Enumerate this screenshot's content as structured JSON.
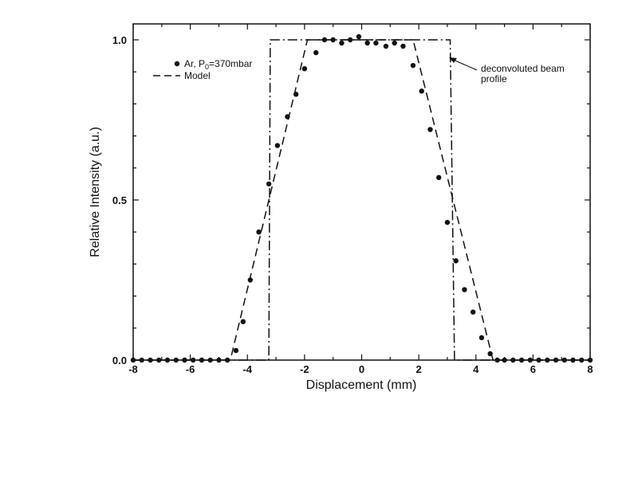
{
  "chart_data": {
    "type": "scatter",
    "xlabel": "Displacement (mm)",
    "ylabel": "Relative Intensity (a.u.)",
    "xlim": [
      -8,
      8
    ],
    "ylim": [
      0,
      1.0
    ],
    "xticks": [
      -8,
      -6,
      -4,
      -2,
      0,
      2,
      4,
      6,
      8
    ],
    "xtick_labels": [
      "-8",
      "-6",
      "-4",
      "-2",
      "0",
      "2",
      "4",
      "6",
      "8"
    ],
    "yticks": [
      0,
      0.5,
      1.0
    ],
    "ytick_labels": [
      "0.0",
      "0.5",
      "1.0"
    ],
    "grid": false,
    "legend_position": "top-left",
    "legend": [
      {
        "label": "Ar, P",
        "sub": "0",
        "label_tail": "=370mbar",
        "style": "dots"
      },
      {
        "label": "Model",
        "style": "dashed"
      }
    ],
    "annotations": [
      {
        "lines": [
          "deconvoluted beam",
          "profile"
        ]
      }
    ],
    "series": [
      {
        "name": "Ar, P0=370mbar",
        "style": "dots",
        "x": [
          -8.0,
          -7.7,
          -7.4,
          -7.1,
          -6.8,
          -6.5,
          -6.2,
          -5.9,
          -5.6,
          -5.3,
          -5.0,
          -4.7,
          -4.4,
          -4.15,
          -3.9,
          -3.6,
          -3.25,
          -2.95,
          -2.6,
          -2.3,
          -2.0,
          -1.6,
          -1.3,
          -1.0,
          -0.7,
          -0.4,
          -0.1,
          0.2,
          0.5,
          0.85,
          1.15,
          1.45,
          1.8,
          2.1,
          2.4,
          2.7,
          3.0,
          3.3,
          3.6,
          3.9,
          4.2,
          4.5,
          4.75,
          5.0,
          5.3,
          5.6,
          5.9,
          6.2,
          6.5,
          6.8,
          7.1,
          7.4,
          7.7,
          8.0
        ],
        "y": [
          0.0,
          0.0,
          0.0,
          0.0,
          0.0,
          0.0,
          0.0,
          0.0,
          0.0,
          0.0,
          0.0,
          0.0,
          0.03,
          0.12,
          0.25,
          0.4,
          0.55,
          0.67,
          0.76,
          0.83,
          0.91,
          0.96,
          1.0,
          1.0,
          0.99,
          1.0,
          1.01,
          0.99,
          0.99,
          0.98,
          0.99,
          0.98,
          0.92,
          0.84,
          0.72,
          0.57,
          0.43,
          0.31,
          0.22,
          0.15,
          0.07,
          0.02,
          0.0,
          0.0,
          0.0,
          0.0,
          0.0,
          0.0,
          0.0,
          0.0,
          0.0,
          0.0,
          0.0,
          0.0
        ]
      },
      {
        "name": "Model",
        "style": "dashed",
        "x": [
          -8,
          -4.6,
          -1.9,
          1.8,
          4.6,
          8
        ],
        "y": [
          0,
          0,
          1.0,
          1.0,
          0,
          0
        ]
      },
      {
        "name": "deconvoluted beam profile",
        "style": "dashdot",
        "x": [
          -8,
          -3.25,
          -3.2,
          3.1,
          3.25,
          8
        ],
        "y": [
          0,
          0,
          1.0,
          1.0,
          0,
          0
        ]
      }
    ]
  }
}
